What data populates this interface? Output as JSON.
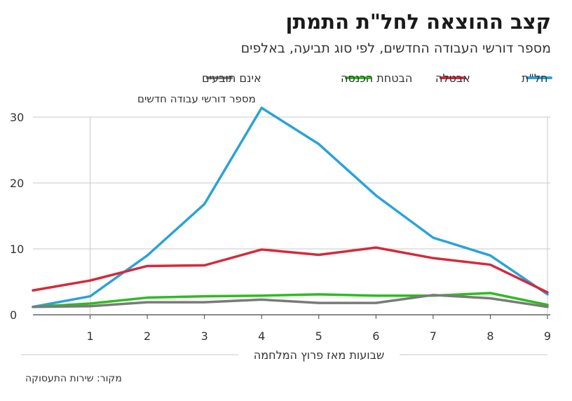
{
  "header": {
    "title": "קצב ההוצאה לחל\"ת התמתן",
    "subtitle": "מספר דורשי העבודה החדשים, לפי סוג תביעה, באלפים"
  },
  "source": "מקור: שירות התעסוקה",
  "colors": {
    "grid": "#c8c8c8",
    "axis": "#444444"
  },
  "chart_data": {
    "type": "line",
    "ylabel": "מספר דורשי עבודה חדשים",
    "xlabel": "שבועות מאז פרוץ המלחמה",
    "ylim": [
      0,
      30
    ],
    "yticks": [
      0,
      10,
      20,
      30
    ],
    "xlim": [
      0,
      9
    ],
    "xticks": [
      1,
      2,
      3,
      4,
      5,
      6,
      7,
      8,
      9
    ],
    "x": [
      0,
      1,
      2,
      3,
      4,
      5,
      6,
      7,
      8,
      9
    ],
    "legend_position": "top",
    "grid": true,
    "series": [
      {
        "name": "חל\"ת",
        "color": "#2aa3d8",
        "values": [
          1.2,
          2.8,
          9.0,
          16.8,
          31.4,
          25.9,
          18.1,
          11.7,
          9.0,
          3.1
        ]
      },
      {
        "name": "אבטלה",
        "color": "#d42a3c",
        "values": [
          3.7,
          5.2,
          7.4,
          7.5,
          9.9,
          9.1,
          10.2,
          8.6,
          7.6,
          3.4
        ]
      },
      {
        "name": "הבטחת הכנסה",
        "color": "#2dbd1f",
        "values": [
          1.2,
          1.7,
          2.6,
          2.8,
          2.9,
          3.1,
          2.9,
          2.9,
          3.3,
          1.5
        ]
      },
      {
        "name": "אינם תובעים",
        "color": "#7a7a7a",
        "values": [
          1.2,
          1.3,
          1.9,
          1.9,
          2.3,
          1.8,
          1.8,
          3.0,
          2.5,
          1.2
        ]
      }
    ]
  }
}
